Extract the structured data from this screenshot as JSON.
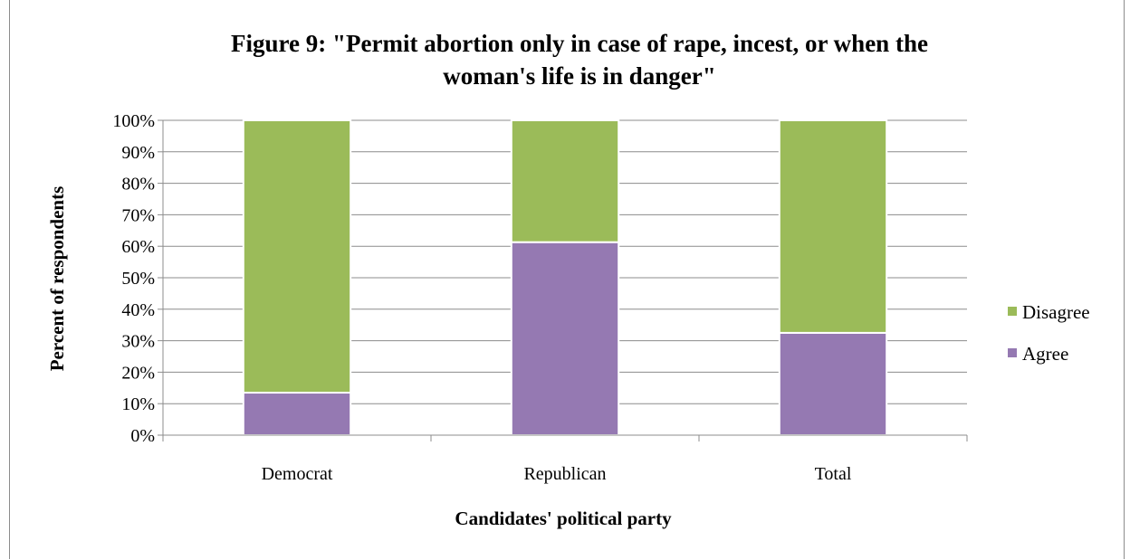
{
  "chart_data": {
    "type": "bar",
    "stacked": true,
    "percent_stacked": true,
    "title_lines": [
      "Figure 9: \"Permit abortion only in case of rape, incest, or when the",
      "woman's life is in danger\""
    ],
    "xlabel": "Candidates' political party",
    "ylabel": "Percent of respondents",
    "categories": [
      "Democrat",
      "Republican",
      "Total"
    ],
    "series": [
      {
        "name": "Agree",
        "color": "#9579b2",
        "values": [
          13.5,
          61.3,
          32.5
        ]
      },
      {
        "name": "Disagree",
        "color": "#9bbb59",
        "values": [
          86.5,
          38.7,
          67.5
        ]
      }
    ],
    "ylim": [
      0,
      100
    ],
    "yticks": [
      "0%",
      "10%",
      "20%",
      "30%",
      "40%",
      "50%",
      "60%",
      "70%",
      "80%",
      "90%",
      "100%"
    ],
    "grid": true,
    "legend_position": "right",
    "legend_order": [
      "Disagree",
      "Agree"
    ]
  }
}
